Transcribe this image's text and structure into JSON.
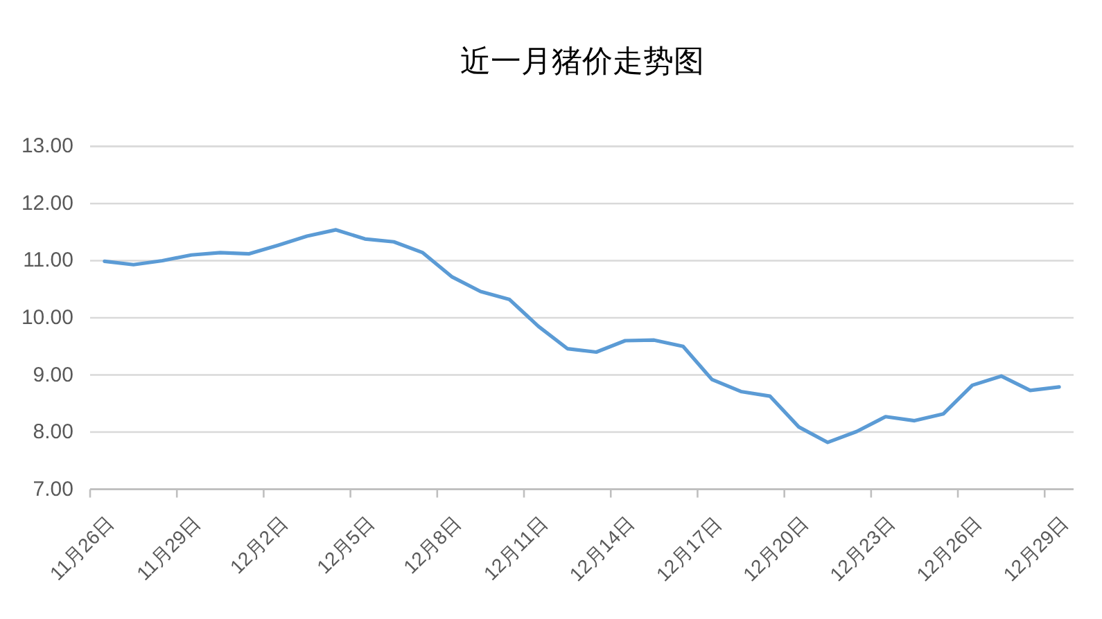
{
  "chart_data": {
    "type": "line",
    "title": "近一月猪价走势图",
    "categories": [
      "11月26日",
      null,
      null,
      "11月29日",
      null,
      null,
      "12月2日",
      null,
      null,
      "12月5日",
      null,
      null,
      "12月8日",
      null,
      null,
      "12月11日",
      null,
      null,
      "12月14日",
      null,
      null,
      "12月17日",
      null,
      null,
      "12月20日",
      null,
      null,
      "12月23日",
      null,
      null,
      "12月26日",
      null,
      null,
      "12月29日"
    ],
    "series": [
      {
        "color": "#5b9bd5",
        "values": [
          10.99,
          10.93,
          11.0,
          11.1,
          11.14,
          11.12,
          11.27,
          11.43,
          11.54,
          11.38,
          11.33,
          11.14,
          10.72,
          10.46,
          10.32,
          9.85,
          9.46,
          9.4,
          9.6,
          9.61,
          9.5,
          8.92,
          8.71,
          8.63,
          8.09,
          7.82,
          8.01,
          8.27,
          8.2,
          8.32,
          8.82,
          8.98,
          8.73,
          8.79
        ]
      }
    ],
    "ylim": [
      7,
      13
    ],
    "yticks": [
      {
        "value": 7,
        "label": "7.00"
      },
      {
        "value": 8,
        "label": "8.00"
      },
      {
        "value": 9,
        "label": "9.00"
      },
      {
        "value": 10,
        "label": "10.00"
      },
      {
        "value": 11,
        "label": "11.00"
      },
      {
        "value": 12,
        "label": "12.00"
      },
      {
        "value": 13,
        "label": "13.00"
      }
    ],
    "grid": "y"
  }
}
